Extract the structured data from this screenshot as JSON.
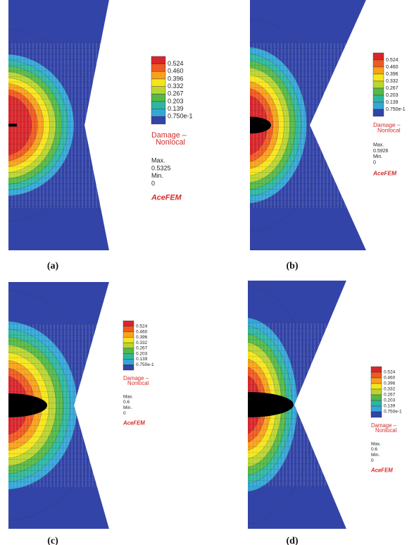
{
  "panels": [
    {
      "label": "(a)",
      "legend": [
        "0.524",
        "0.460",
        "0.396",
        "0.332",
        "0.267",
        "0.203",
        "0.139",
        "0.750e-1"
      ],
      "legend_title": [
        "Damage –",
        "Nonlocal"
      ],
      "max_label": "Max.",
      "max": "0.5325",
      "min_label": "Min.",
      "min": "0",
      "brand": "AceFEM"
    },
    {
      "label": "(b)",
      "legend": [
        "0.524",
        "0.460",
        "0.396",
        "0.332",
        "0.267",
        "0.203",
        "0.139",
        "0.750e-1"
      ],
      "legend_title": [
        "Damage –",
        "Nonlocal"
      ],
      "max_label": "Max.",
      "max": "0.5926",
      "min_label": "Min.",
      "min": "0",
      "brand": "AceFEM"
    },
    {
      "label": "(c)",
      "legend": [
        "0.524",
        "0.460",
        "0.396",
        "0.332",
        "0.267",
        "0.203",
        "0.139",
        "0.750e-1"
      ],
      "legend_title": [
        "Damage –",
        "Nonlocal"
      ],
      "max_label": "Max.",
      "max": "0.6",
      "min_label": "Min.",
      "min": "0",
      "brand": "AceFEM"
    },
    {
      "label": "(d)",
      "legend": [
        "0.524",
        "0.460",
        "0.396",
        "0.332",
        "0.267",
        "0.203",
        "0.139",
        "0.750e-1"
      ],
      "legend_title": [
        "Damage –",
        "Nonlocal"
      ],
      "max_label": "Max.",
      "max": "0.6",
      "min_label": "Min.",
      "min": "0",
      "brand": "AceFEM"
    }
  ]
}
